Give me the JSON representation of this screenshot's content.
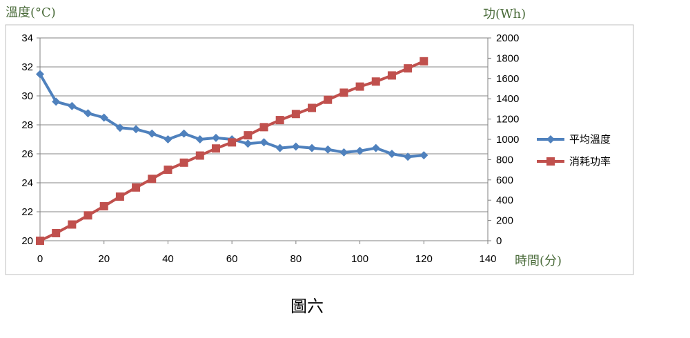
{
  "caption": "圖六",
  "chart_data": {
    "type": "line",
    "xlabel": "時間(分)",
    "ylabel_left": "溫度(°C)",
    "ylabel_right": "功(Wh)",
    "xlim": [
      0,
      140
    ],
    "xticks": [
      "0",
      "20",
      "40",
      "60",
      "80",
      "100",
      "120",
      "140"
    ],
    "ylim_left": [
      20,
      34
    ],
    "yticks_left": [
      "20",
      "22",
      "24",
      "26",
      "28",
      "30",
      "32",
      "34"
    ],
    "ylim_right": [
      0,
      2000
    ],
    "yticks_right": [
      "0",
      "200",
      "400",
      "600",
      "800",
      "1000",
      "1200",
      "1400",
      "1600",
      "1800",
      "2000"
    ],
    "grid": true,
    "legend_position": "right",
    "series": [
      {
        "name": "平均溫度",
        "axis": "left",
        "color": "#4f81bd",
        "marker": "diamond",
        "x": [
          0,
          5,
          10,
          15,
          20,
          25,
          30,
          35,
          40,
          45,
          50,
          55,
          60,
          65,
          70,
          75,
          80,
          85,
          90,
          95,
          100,
          105,
          110,
          115,
          120
        ],
        "values": [
          31.5,
          29.6,
          29.3,
          28.8,
          28.5,
          27.8,
          27.7,
          27.4,
          27.0,
          27.4,
          27.0,
          27.1,
          27.0,
          26.7,
          26.8,
          26.4,
          26.5,
          26.4,
          26.3,
          26.1,
          26.2,
          26.4,
          26.0,
          25.8,
          25.9
        ]
      },
      {
        "name": "消耗功率",
        "axis": "right",
        "color": "#c0504d",
        "marker": "square",
        "x": [
          0,
          5,
          10,
          15,
          20,
          25,
          30,
          35,
          40,
          45,
          50,
          55,
          60,
          65,
          70,
          75,
          80,
          85,
          90,
          95,
          100,
          105,
          110,
          115,
          120
        ],
        "values": [
          0,
          75,
          160,
          250,
          340,
          435,
          525,
          610,
          700,
          770,
          840,
          910,
          970,
          1040,
          1120,
          1190,
          1250,
          1310,
          1390,
          1460,
          1520,
          1570,
          1630,
          1700,
          1770
        ]
      }
    ]
  }
}
